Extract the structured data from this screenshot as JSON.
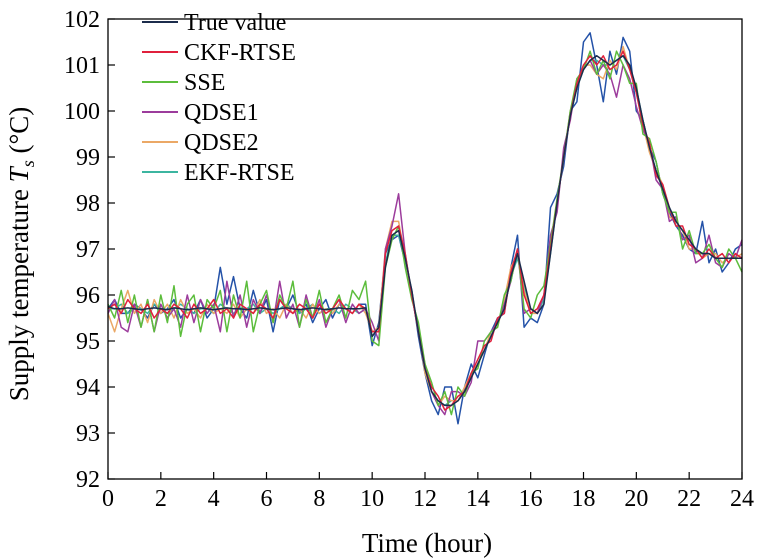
{
  "chart_data": {
    "type": "line",
    "xlabel": "Time (hour)",
    "ylabel_prefix": "Supply temperature ",
    "ylabel_symbol": "T",
    "ylabel_subscript": "s",
    "ylabel_unit": " (°C)",
    "xlim": [
      0,
      24
    ],
    "ylim": [
      92,
      102
    ],
    "xticks": [
      0,
      2,
      4,
      6,
      8,
      10,
      12,
      14,
      16,
      18,
      20,
      22,
      24
    ],
    "yticks": [
      92,
      93,
      94,
      95,
      96,
      97,
      98,
      99,
      100,
      101,
      102
    ],
    "grid": false,
    "legend_position": "top-left",
    "x": [
      0,
      0.25,
      0.5,
      0.75,
      1,
      1.25,
      1.5,
      1.75,
      2,
      2.25,
      2.5,
      2.75,
      3,
      3.25,
      3.5,
      3.75,
      4,
      4.25,
      4.5,
      4.75,
      5,
      5.25,
      5.5,
      5.75,
      6,
      6.25,
      6.5,
      6.75,
      7,
      7.25,
      7.5,
      7.75,
      8,
      8.25,
      8.5,
      8.75,
      9,
      9.25,
      9.5,
      9.75,
      10,
      10.25,
      10.5,
      10.75,
      11,
      11.25,
      11.5,
      11.75,
      12,
      12.25,
      12.5,
      12.75,
      13,
      13.25,
      13.5,
      13.75,
      14,
      14.25,
      14.5,
      14.75,
      15,
      15.25,
      15.5,
      15.75,
      16,
      16.25,
      16.5,
      16.75,
      17,
      17.25,
      17.5,
      17.75,
      18,
      18.25,
      18.5,
      18.75,
      19,
      19.25,
      19.5,
      19.75,
      20,
      20.25,
      20.5,
      20.75,
      21,
      21.25,
      21.5,
      21.75,
      22,
      22.25,
      22.5,
      22.75,
      23,
      23.25,
      23.5,
      23.75,
      24
    ],
    "series": [
      {
        "name": "True value",
        "color": "#1c2c4c",
        "values": [
          95.75,
          95.7,
          95.7,
          95.72,
          95.7,
          95.68,
          95.7,
          95.72,
          95.7,
          95.68,
          95.72,
          95.7,
          95.68,
          95.7,
          95.72,
          95.7,
          95.68,
          95.7,
          95.72,
          95.7,
          95.7,
          95.68,
          95.7,
          95.72,
          95.7,
          95.68,
          95.7,
          95.72,
          95.7,
          95.68,
          95.7,
          95.72,
          95.7,
          95.68,
          95.7,
          95.72,
          95.7,
          95.7,
          95.7,
          95.72,
          95.1,
          95.3,
          96.6,
          97.3,
          97.4,
          96.8,
          96.1,
          95.2,
          94.4,
          93.9,
          93.7,
          93.6,
          93.6,
          93.7,
          93.9,
          94.2,
          94.5,
          94.8,
          95.1,
          95.4,
          95.7,
          96.4,
          96.9,
          96.3,
          95.7,
          95.6,
          95.8,
          96.9,
          98.0,
          99.0,
          99.9,
          100.5,
          100.9,
          101.1,
          101.2,
          101.1,
          101.0,
          101.1,
          101.2,
          101.0,
          100.5,
          99.8,
          99.2,
          98.7,
          98.3,
          97.9,
          97.6,
          97.4,
          97.2,
          97.0,
          96.9,
          96.9,
          96.8,
          96.8,
          96.8,
          96.8,
          96.8
        ]
      },
      {
        "name": "CKF-RTSE",
        "color": "#e0203c",
        "values": [
          95.7,
          95.8,
          95.6,
          95.9,
          95.7,
          95.6,
          95.8,
          95.5,
          95.7,
          95.6,
          95.8,
          95.7,
          95.5,
          95.8,
          95.6,
          95.7,
          95.9,
          95.6,
          95.7,
          95.5,
          95.8,
          95.7,
          95.6,
          95.8,
          95.7,
          95.5,
          95.9,
          95.7,
          95.6,
          95.8,
          95.7,
          95.5,
          95.8,
          95.6,
          95.7,
          95.9,
          95.7,
          95.6,
          95.8,
          95.7,
          95.2,
          95.2,
          96.9,
          97.4,
          97.5,
          96.9,
          96.0,
          95.2,
          94.4,
          94.0,
          93.8,
          93.5,
          93.6,
          93.8,
          93.9,
          94.3,
          94.6,
          94.9,
          95.0,
          95.5,
          95.6,
          96.5,
          97.0,
          96.0,
          95.6,
          95.7,
          96.0,
          97.0,
          98.0,
          99.0,
          99.9,
          100.6,
          101.0,
          101.2,
          101.0,
          101.2,
          100.9,
          101.0,
          101.3,
          100.9,
          100.4,
          99.7,
          99.3,
          98.6,
          98.4,
          97.9,
          97.5,
          97.5,
          97.1,
          97.0,
          96.8,
          97.0,
          96.8,
          96.9,
          96.7,
          96.9,
          96.8
        ]
      },
      {
        "name": "SSE",
        "color": "#5cbd3c",
        "values": [
          95.8,
          95.5,
          96.1,
          95.4,
          96.0,
          95.3,
          95.9,
          95.2,
          96.0,
          95.4,
          96.2,
          95.1,
          95.8,
          96.0,
          95.2,
          95.9,
          95.7,
          96.1,
          95.2,
          96.0,
          95.5,
          96.3,
          95.2,
          95.8,
          96.1,
          95.4,
          96.0,
          95.7,
          96.3,
          95.3,
          95.9,
          95.5,
          96.1,
          95.4,
          95.7,
          96.0,
          95.5,
          96.1,
          95.9,
          96.3,
          95.0,
          94.9,
          96.6,
          97.2,
          97.5,
          96.6,
          95.9,
          95.4,
          94.5,
          94.1,
          93.6,
          93.9,
          93.4,
          94.0,
          93.8,
          94.3,
          94.4,
          95.0,
          95.2,
          95.3,
          96.0,
          96.3,
          97.0,
          95.7,
          95.5,
          96.0,
          96.2,
          97.1,
          98.1,
          99.0,
          100.0,
          100.7,
          100.9,
          101.3,
          100.8,
          101.1,
          100.7,
          101.3,
          101.0,
          100.6,
          100.6,
          99.5,
          99.4,
          98.9,
          98.2,
          97.8,
          97.8,
          97.0,
          97.4,
          96.9,
          96.9,
          97.1,
          96.8,
          96.6,
          97.0,
          96.8,
          96.5
        ]
      },
      {
        "name": "QDSE1",
        "color": "#9c3c9c",
        "values": [
          95.6,
          95.9,
          95.3,
          95.2,
          95.8,
          95.3,
          95.9,
          95.2,
          95.8,
          95.5,
          95.7,
          95.3,
          96.0,
          95.4,
          95.9,
          95.6,
          95.8,
          95.2,
          96.3,
          95.5,
          96.0,
          95.3,
          95.9,
          95.6,
          96.0,
          95.4,
          96.3,
          95.5,
          95.8,
          95.3,
          96.0,
          95.5,
          95.9,
          95.3,
          95.7,
          95.9,
          95.4,
          95.8,
          95.6,
          95.7,
          95.4,
          95.0,
          97.0,
          97.5,
          98.2,
          96.9,
          96.0,
          95.2,
          94.5,
          93.9,
          93.6,
          93.4,
          93.9,
          93.9,
          93.8,
          94.1,
          95.0,
          95.0,
          95.2,
          95.4,
          95.8,
          96.3,
          97.0,
          95.6,
          95.7,
          95.6,
          96.0,
          97.3,
          97.8,
          99.2,
          99.8,
          100.7,
          100.9,
          101.1,
          100.8,
          101.0,
          100.8,
          100.3,
          101.0,
          100.7,
          100.1,
          99.6,
          99.3,
          98.5,
          98.3,
          97.6,
          97.7,
          97.2,
          97.3,
          96.7,
          96.8,
          97.3,
          96.7,
          96.6,
          96.9,
          96.8,
          97.2
        ]
      },
      {
        "name": "QDSE2",
        "color": "#eba866",
        "values": [
          95.6,
          95.2,
          95.7,
          96.1,
          95.6,
          95.8,
          95.4,
          95.9,
          95.6,
          95.8,
          95.5,
          95.9,
          95.6,
          95.7,
          95.5,
          95.8,
          95.6,
          95.7,
          95.6,
          95.8,
          95.5,
          95.7,
          95.6,
          95.9,
          95.6,
          95.7,
          95.5,
          95.8,
          95.6,
          95.7,
          95.5,
          95.8,
          95.6,
          95.7,
          95.6,
          95.8,
          95.7,
          95.6,
          95.8,
          95.6,
          95.2,
          95.3,
          97.0,
          97.6,
          97.6,
          96.8,
          96.0,
          95.3,
          94.3,
          93.9,
          93.6,
          93.8,
          93.7,
          93.7,
          94.0,
          94.3,
          94.5,
          94.8,
          95.2,
          95.3,
          95.9,
          96.6,
          96.9,
          96.1,
          95.6,
          95.6,
          96.0,
          97.1,
          98.0,
          99.0,
          100.0,
          100.5,
          101.0,
          101.0,
          100.8,
          100.7,
          101.1,
          100.9,
          101.4,
          100.9,
          100.4,
          99.7,
          99.1,
          98.7,
          98.4,
          97.7,
          97.6,
          97.4,
          97.0,
          97.0,
          96.8,
          96.9,
          96.9,
          96.7,
          96.8,
          96.8,
          96.9
        ]
      },
      {
        "name": "EKF-RTSE",
        "color": "#3cb5a0",
        "values": [
          95.7,
          95.7,
          95.8,
          95.6,
          95.7,
          95.7,
          95.6,
          95.8,
          95.7,
          95.6,
          95.7,
          95.8,
          95.7,
          95.6,
          95.7,
          95.7,
          95.6,
          95.8,
          95.7,
          95.6,
          95.7,
          95.7,
          95.8,
          95.6,
          95.7,
          95.6,
          95.7,
          95.8,
          95.7,
          95.6,
          95.7,
          95.8,
          95.6,
          95.7,
          95.7,
          95.6,
          95.8,
          95.7,
          95.6,
          95.7,
          95.1,
          95.3,
          96.7,
          97.3,
          97.3,
          96.8,
          96.0,
          95.2,
          94.4,
          93.9,
          93.7,
          93.6,
          93.7,
          93.7,
          93.9,
          94.2,
          94.5,
          94.8,
          95.1,
          95.4,
          95.7,
          96.4,
          96.8,
          96.2,
          95.7,
          95.6,
          95.9,
          96.9,
          98.0,
          99.0,
          99.9,
          100.5,
          100.9,
          101.1,
          101.1,
          101.0,
          101.0,
          101.1,
          101.2,
          100.9,
          100.5,
          99.8,
          99.2,
          98.7,
          98.3,
          97.9,
          97.6,
          97.4,
          97.2,
          97.0,
          96.9,
          96.9,
          96.8,
          96.8,
          96.8,
          96.8,
          96.8
        ]
      },
      {
        "name": "",
        "color": "#2452a8",
        "values": [
          95.7,
          95.9,
          95.6,
          95.6,
          95.8,
          95.7,
          95.5,
          95.8,
          95.6,
          95.7,
          95.9,
          95.5,
          95.7,
          95.6,
          95.9,
          95.5,
          95.7,
          96.6,
          95.8,
          96.4,
          95.7,
          95.5,
          96.1,
          95.6,
          95.9,
          95.2,
          95.9,
          95.7,
          96.0,
          95.6,
          95.8,
          95.4,
          95.7,
          95.9,
          95.5,
          95.8,
          95.7,
          95.6,
          95.8,
          95.8,
          94.9,
          95.4,
          96.9,
          97.2,
          97.3,
          96.7,
          96.1,
          95.1,
          94.3,
          93.7,
          93.4,
          94.0,
          94.0,
          93.2,
          94.0,
          94.5,
          94.2,
          94.7,
          95.2,
          95.5,
          95.6,
          96.6,
          97.3,
          95.3,
          95.5,
          95.4,
          95.8,
          97.9,
          98.2,
          98.8,
          100.0,
          100.2,
          101.5,
          101.7,
          101.0,
          100.2,
          101.3,
          100.8,
          101.6,
          101.3,
          100.0,
          99.8,
          99.2,
          98.9,
          98.2,
          97.8,
          97.5,
          97.3,
          97.0,
          96.9,
          97.6,
          96.7,
          97.0,
          96.5,
          96.7,
          97.0,
          97.1
        ]
      }
    ]
  }
}
